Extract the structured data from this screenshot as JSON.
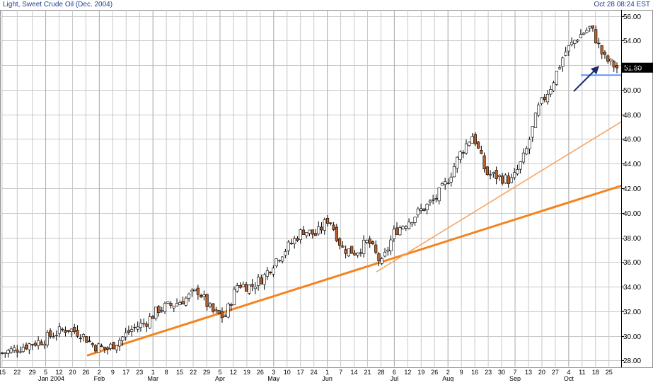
{
  "header": {
    "title": "Light, Sweet Crude Oil (Dec. 2004)",
    "timestamp": "Oct 28 08:24 EST"
  },
  "colors": {
    "background": "#ffffff",
    "grid": "#c8c8c8",
    "header_text": "#1c3f94",
    "candle_up_fill": "#ffffff",
    "candle_down_fill": "#b8602c",
    "candle_outline": "#000000",
    "trendline_major": "#f5841f",
    "trendline_minor": "#f7a564",
    "last_price_line": "#6699ff",
    "arrow": "#1a2a6c",
    "price_label_bg": "#000000",
    "price_label_text": "#ffffff"
  },
  "chart_data": {
    "type": "candlestick",
    "title": "Light, Sweet Crude Oil (Dec. 2004)",
    "timestamp": "Oct 28 08:24 EST",
    "y_axis": {
      "position": "right",
      "range": [
        27.5,
        56.5
      ],
      "ticks": [
        "56.00",
        "54.00",
        "52.00",
        "50.00",
        "48.00",
        "46.00",
        "44.00",
        "42.00",
        "40.00",
        "38.00",
        "36.00",
        "34.00",
        "32.00",
        "30.00",
        "28.00"
      ],
      "grid": true
    },
    "x_axis": {
      "day_ticks": [
        "15",
        "22",
        "29",
        "5",
        "12",
        "20",
        "26",
        "2",
        "9",
        "17",
        "23",
        "1",
        "8",
        "15",
        "22",
        "29",
        "5",
        "12",
        "19",
        "26",
        "3",
        "10",
        "17",
        "24",
        "1",
        "7",
        "14",
        "21",
        "28",
        "6",
        "12",
        "19",
        "26",
        "2",
        "9",
        "16",
        "23",
        "30",
        "7",
        "13",
        "20",
        "27",
        "4",
        "11",
        "18",
        "25"
      ],
      "month_labels": [
        "Jan 2004",
        "Feb",
        "Mar",
        "Apr",
        "May",
        "Jun",
        "Jul",
        "Aug",
        "Sep",
        "Oct"
      ],
      "grid": true
    },
    "last_price": "51.80",
    "last_price_value": 51.8,
    "weekly_closes": [
      28.6,
      28.9,
      29.3,
      29.6,
      30.2,
      30.6,
      30.2,
      29.2,
      28.9,
      29.7,
      30.6,
      31.1,
      32.2,
      32.5,
      33.0,
      33.7,
      32.0,
      31.5,
      34.2,
      34.0,
      34.8,
      36.3,
      37.4,
      38.6,
      38.2,
      39.6,
      37.1,
      36.8,
      37.7,
      35.8,
      38.5,
      39.3,
      40.2,
      41.0,
      42.5,
      44.8,
      46.4,
      43.2,
      42.9,
      42.6,
      44.8,
      48.5,
      50.4,
      53.0,
      54.3,
      55.1,
      52.6,
      51.8
    ],
    "annotations": [
      {
        "type": "trendline",
        "color": "#f5841f",
        "from": {
          "x": "Feb 2 2004",
          "y": 28.4
        },
        "to": {
          "x": "Oct 28 2004",
          "y": 42.2
        }
      },
      {
        "type": "trendline",
        "color": "#f7a564",
        "from": {
          "x": "Jun 28 2004",
          "y": 35.2
        },
        "to": {
          "x": "Oct 28 2004",
          "y": 47.4
        }
      },
      {
        "type": "hline",
        "color": "#6699ff",
        "y": 51.2,
        "from_x": "Oct 11 2004"
      },
      {
        "type": "arrow",
        "color": "#1a2a6c",
        "direction": "up-right",
        "near": "Oct 11 2004"
      }
    ]
  }
}
